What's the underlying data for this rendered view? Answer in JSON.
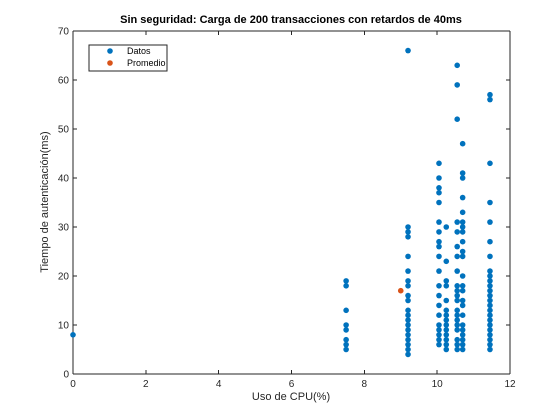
{
  "chart_data": {
    "type": "scatter",
    "title": "Sin seguridad: Carga de 200 transacciones con retardos de 40ms",
    "xlabel": "Uso de CPU(%)",
    "ylabel": "Tiempo de autenticación(ms)",
    "xlim": [
      0,
      12
    ],
    "ylim": [
      0,
      70
    ],
    "xticks": [
      0,
      2,
      4,
      6,
      8,
      10,
      12
    ],
    "yticks": [
      0,
      10,
      20,
      30,
      40,
      50,
      60,
      70
    ],
    "grid": false,
    "legend_position": "top-left",
    "series": [
      {
        "name": "Datos",
        "color": "#0072BD",
        "points": [
          [
            0,
            8
          ],
          [
            7.5,
            19
          ],
          [
            7.5,
            18
          ],
          [
            7.5,
            13
          ],
          [
            7.5,
            10
          ],
          [
            7.5,
            9
          ],
          [
            7.5,
            7
          ],
          [
            7.5,
            6
          ],
          [
            7.5,
            5
          ],
          [
            9.2,
            66
          ],
          [
            9.2,
            30
          ],
          [
            9.2,
            29
          ],
          [
            9.2,
            28
          ],
          [
            9.2,
            24
          ],
          [
            9.2,
            21
          ],
          [
            9.2,
            19
          ],
          [
            9.2,
            18
          ],
          [
            9.2,
            16
          ],
          [
            9.2,
            15
          ],
          [
            9.2,
            13
          ],
          [
            9.2,
            12
          ],
          [
            9.2,
            11
          ],
          [
            9.2,
            10
          ],
          [
            9.2,
            9
          ],
          [
            9.2,
            8
          ],
          [
            9.2,
            7
          ],
          [
            9.2,
            6
          ],
          [
            9.2,
            5
          ],
          [
            9.2,
            4
          ],
          [
            10.05,
            43
          ],
          [
            10.05,
            40
          ],
          [
            10.05,
            38
          ],
          [
            10.05,
            37
          ],
          [
            10.05,
            35
          ],
          [
            10.05,
            31
          ],
          [
            10.05,
            29
          ],
          [
            10.05,
            27
          ],
          [
            10.05,
            26
          ],
          [
            10.05,
            24
          ],
          [
            10.05,
            21
          ],
          [
            10.05,
            18
          ],
          [
            10.05,
            16
          ],
          [
            10.05,
            14
          ],
          [
            10.05,
            12
          ],
          [
            10.05,
            10
          ],
          [
            10.05,
            9
          ],
          [
            10.05,
            8
          ],
          [
            10.05,
            7
          ],
          [
            10.05,
            6
          ],
          [
            10.25,
            30
          ],
          [
            10.25,
            23
          ],
          [
            10.25,
            19
          ],
          [
            10.25,
            18
          ],
          [
            10.25,
            15
          ],
          [
            10.25,
            13
          ],
          [
            10.25,
            12
          ],
          [
            10.25,
            11
          ],
          [
            10.25,
            10
          ],
          [
            10.25,
            9
          ],
          [
            10.25,
            8
          ],
          [
            10.25,
            7
          ],
          [
            10.25,
            6
          ],
          [
            10.25,
            5
          ],
          [
            10.55,
            63
          ],
          [
            10.55,
            59
          ],
          [
            10.55,
            52
          ],
          [
            10.55,
            31
          ],
          [
            10.55,
            29
          ],
          [
            10.55,
            26
          ],
          [
            10.55,
            24
          ],
          [
            10.55,
            21
          ],
          [
            10.55,
            18
          ],
          [
            10.55,
            17
          ],
          [
            10.55,
            16
          ],
          [
            10.55,
            15
          ],
          [
            10.55,
            13
          ],
          [
            10.55,
            12
          ],
          [
            10.55,
            11
          ],
          [
            10.55,
            10
          ],
          [
            10.55,
            9
          ],
          [
            10.55,
            7
          ],
          [
            10.55,
            6
          ],
          [
            10.55,
            5
          ],
          [
            10.7,
            47
          ],
          [
            10.7,
            41
          ],
          [
            10.7,
            40
          ],
          [
            10.7,
            36
          ],
          [
            10.7,
            33
          ],
          [
            10.7,
            31
          ],
          [
            10.7,
            30
          ],
          [
            10.7,
            29
          ],
          [
            10.7,
            27
          ],
          [
            10.7,
            25
          ],
          [
            10.7,
            24
          ],
          [
            10.7,
            20
          ],
          [
            10.7,
            18
          ],
          [
            10.7,
            17
          ],
          [
            10.7,
            15
          ],
          [
            10.7,
            14
          ],
          [
            10.7,
            12
          ],
          [
            10.7,
            10
          ],
          [
            10.7,
            9
          ],
          [
            10.7,
            8
          ],
          [
            10.7,
            7
          ],
          [
            10.7,
            6
          ],
          [
            10.7,
            5
          ],
          [
            11.45,
            57
          ],
          [
            11.45,
            56
          ],
          [
            11.45,
            43
          ],
          [
            11.45,
            35
          ],
          [
            11.45,
            31
          ],
          [
            11.45,
            27
          ],
          [
            11.45,
            24
          ],
          [
            11.45,
            21
          ],
          [
            11.45,
            20
          ],
          [
            11.45,
            19
          ],
          [
            11.45,
            18
          ],
          [
            11.45,
            17
          ],
          [
            11.45,
            16
          ],
          [
            11.45,
            15
          ],
          [
            11.45,
            14
          ],
          [
            11.45,
            13
          ],
          [
            11.45,
            12
          ],
          [
            11.45,
            11
          ],
          [
            11.45,
            10
          ],
          [
            11.45,
            9
          ],
          [
            11.45,
            8
          ],
          [
            11.45,
            7
          ],
          [
            11.45,
            6
          ],
          [
            11.45,
            5
          ]
        ]
      },
      {
        "name": "Promedio",
        "color": "#D95319",
        "points": [
          [
            9.0,
            17
          ]
        ]
      }
    ]
  }
}
